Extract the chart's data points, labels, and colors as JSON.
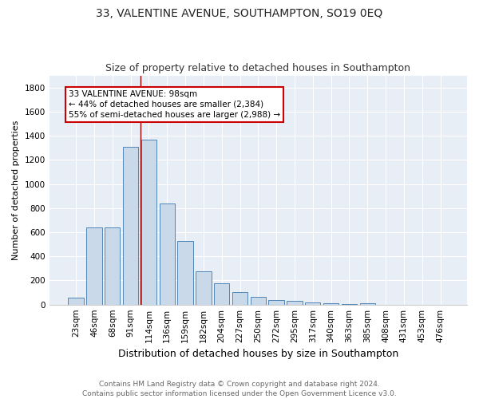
{
  "title": "33, VALENTINE AVENUE, SOUTHAMPTON, SO19 0EQ",
  "subtitle": "Size of property relative to detached houses in Southampton",
  "xlabel": "Distribution of detached houses by size in Southampton",
  "ylabel": "Number of detached properties",
  "categories": [
    "23sqm",
    "46sqm",
    "68sqm",
    "91sqm",
    "114sqm",
    "136sqm",
    "159sqm",
    "182sqm",
    "204sqm",
    "227sqm",
    "250sqm",
    "272sqm",
    "295sqm",
    "317sqm",
    "340sqm",
    "363sqm",
    "385sqm",
    "408sqm",
    "431sqm",
    "453sqm",
    "476sqm"
  ],
  "values": [
    55,
    640,
    640,
    1305,
    1370,
    840,
    525,
    275,
    175,
    105,
    65,
    35,
    30,
    20,
    8,
    3,
    12,
    0,
    0,
    0,
    0
  ],
  "bar_color": "#c9d9ea",
  "bar_edge_color": "#4f86b8",
  "bg_color": "#e8eef6",
  "grid_color": "#ffffff",
  "vline_x": 3.55,
  "vline_color": "#990000",
  "annotation_text": "33 VALENTINE AVENUE: 98sqm\n← 44% of detached houses are smaller (2,384)\n55% of semi-detached houses are larger (2,988) →",
  "annotation_box_color": "#ffffff",
  "annotation_box_edge": "#cc0000",
  "ylim": [
    0,
    1900
  ],
  "yticks": [
    0,
    200,
    400,
    600,
    800,
    1000,
    1200,
    1400,
    1600,
    1800
  ],
  "footer": "Contains HM Land Registry data © Crown copyright and database right 2024.\nContains public sector information licensed under the Open Government Licence v3.0.",
  "title_fontsize": 10,
  "subtitle_fontsize": 9,
  "xlabel_fontsize": 9,
  "ylabel_fontsize": 8,
  "tick_fontsize": 7.5,
  "annotation_fontsize": 7.5,
  "footer_fontsize": 6.5
}
